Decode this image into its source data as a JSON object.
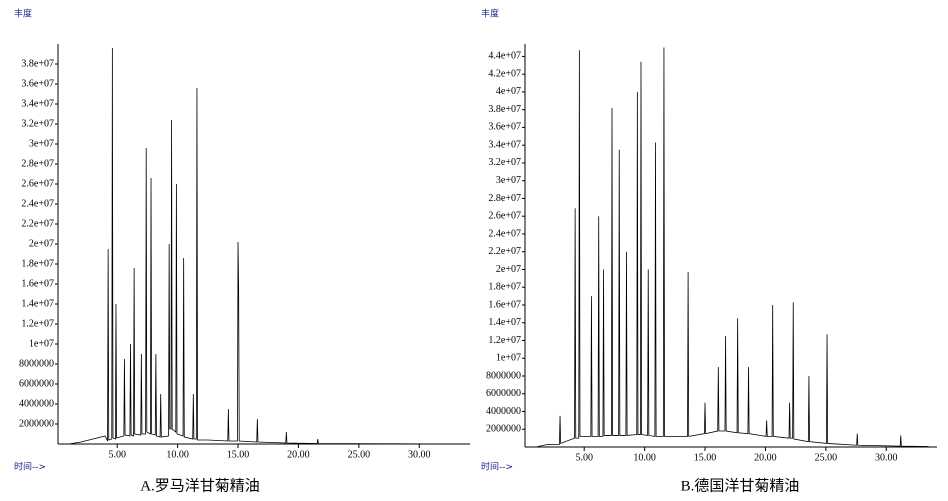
{
  "chart_data": [
    {
      "type": "line",
      "title": "A.罗马洋甘菊精油",
      "y_label": "丰度",
      "x_label": "时间-->",
      "color": "#000000",
      "x": [
        1.0,
        2.0,
        3.0,
        4.0,
        4.2,
        4.25,
        4.3,
        4.55,
        4.6,
        4.65,
        4.85,
        4.9,
        4.95,
        5.55,
        5.6,
        5.65,
        6.05,
        6.1,
        6.15,
        6.35,
        6.4,
        6.45,
        6.95,
        7.0,
        7.05,
        7.35,
        7.4,
        7.45,
        7.75,
        7.8,
        7.85,
        8.15,
        8.2,
        8.25,
        8.55,
        8.6,
        8.65,
        9.25,
        9.3,
        9.35,
        9.45,
        9.5,
        9.55,
        9.85,
        9.9,
        9.95,
        10.45,
        10.5,
        10.55,
        11.25,
        11.3,
        11.35,
        11.55,
        11.6,
        11.65,
        12.5,
        14.15,
        14.2,
        14.25,
        14.95,
        15.0,
        15.05,
        15.1,
        16.55,
        16.6,
        16.65,
        18.95,
        19.0,
        19.05,
        21.55,
        21.6,
        21.65,
        28.0,
        33.0
      ],
      "values": [
        0,
        200000,
        500000,
        800000,
        300000,
        19500000,
        400000,
        500000,
        39600000,
        600000,
        500000,
        14000000,
        600000,
        800000,
        8500000,
        900000,
        800000,
        10000000,
        900000,
        800000,
        17600000,
        1000000,
        900000,
        9000000,
        1000000,
        1000000,
        29600000,
        1200000,
        1000000,
        26600000,
        1000000,
        900000,
        9000000,
        800000,
        700000,
        5000000,
        700000,
        800000,
        20000000,
        1500000,
        1500000,
        32400000,
        1500000,
        1200000,
        26000000,
        1000000,
        800000,
        18600000,
        700000,
        500000,
        5000000,
        500000,
        500000,
        35600000,
        400000,
        400000,
        300000,
        3500000,
        300000,
        300000,
        20200000,
        15500000,
        300000,
        200000,
        2500000,
        200000,
        100000,
        1200000,
        100000,
        50000,
        500000,
        50000,
        20000,
        0
      ],
      "xlim": [
        0.1,
        34.2
      ],
      "ylim": [
        0,
        40000000
      ],
      "xticks": [
        {
          "value": 5,
          "label": "5.00"
        },
        {
          "value": 10,
          "label": "10.00"
        },
        {
          "value": 15,
          "label": "15.00"
        },
        {
          "value": 20,
          "label": "20.00"
        },
        {
          "value": 25,
          "label": "25.00"
        },
        {
          "value": 30,
          "label": "30.00"
        }
      ],
      "yticks": [
        2000000,
        4000000,
        6000000,
        8000000,
        {
          "value": 10000000,
          "label": "1e+07"
        },
        {
          "value": 12000000,
          "label": "1.2e+07"
        },
        {
          "value": 14000000,
          "label": "1.4e+07"
        },
        {
          "value": 16000000,
          "label": "1.6e+07"
        },
        {
          "value": 18000000,
          "label": "1.8e+07"
        },
        {
          "value": 20000000,
          "label": "2e+07"
        },
        {
          "value": 22000000,
          "label": "2.2e+07"
        },
        {
          "value": 24000000,
          "label": "2.4e+07"
        },
        {
          "value": 26000000,
          "label": "2.6e+07"
        },
        {
          "value": 28000000,
          "label": "2.8e+07"
        },
        {
          "value": 30000000,
          "label": "3e+07"
        },
        {
          "value": 32000000,
          "label": "3.2e+07"
        },
        {
          "value": 34000000,
          "label": "3.4e+07"
        },
        {
          "value": 36000000,
          "label": "3.6e+07"
        },
        {
          "value": 38000000,
          "label": "3.8e+07"
        }
      ]
    },
    {
      "type": "line",
      "title": "B.德国洋甘菊精油",
      "y_label": "丰度",
      "x_label": "时间-->",
      "color": "#000000",
      "x": [
        1.0,
        2.0,
        2.95,
        3.0,
        3.05,
        4.2,
        4.25,
        4.3,
        4.55,
        4.6,
        4.65,
        5.55,
        5.6,
        5.65,
        6.15,
        6.2,
        6.25,
        6.55,
        6.6,
        6.65,
        7.25,
        7.3,
        7.35,
        7.85,
        7.9,
        7.95,
        8.45,
        8.5,
        8.55,
        9.35,
        9.4,
        9.45,
        9.65,
        9.7,
        9.75,
        10.25,
        10.3,
        10.35,
        10.85,
        10.9,
        10.95,
        11.55,
        11.6,
        11.65,
        12.5,
        13.55,
        13.6,
        13.65,
        14.95,
        15.0,
        15.05,
        16.05,
        16.1,
        16.15,
        16.65,
        16.7,
        16.75,
        17.65,
        17.7,
        17.75,
        18.55,
        18.6,
        18.65,
        20.05,
        20.1,
        20.15,
        20.55,
        20.6,
        20.65,
        21.95,
        22.0,
        22.05,
        22.25,
        22.3,
        22.35,
        23.55,
        23.6,
        23.65,
        25.05,
        25.1,
        25.15,
        27.55,
        27.6,
        27.65,
        31.15,
        31.2,
        31.25,
        33.5
      ],
      "values": [
        0,
        300000,
        300000,
        3500000,
        400000,
        1000000,
        26900000,
        1000000,
        1000000,
        44700000,
        1200000,
        1200000,
        17000000,
        1200000,
        1200000,
        26000000,
        1200000,
        1200000,
        20000000,
        1300000,
        1300000,
        38200000,
        1300000,
        1300000,
        33500000,
        1300000,
        1300000,
        22000000,
        1300000,
        1400000,
        40000000,
        1400000,
        1400000,
        43400000,
        1400000,
        1300000,
        20000000,
        1300000,
        1200000,
        34300000,
        1200000,
        1200000,
        45000000,
        1200000,
        1200000,
        1200000,
        19700000,
        1200000,
        1500000,
        5000000,
        1500000,
        1800000,
        9000000,
        1800000,
        1800000,
        12500000,
        1800000,
        1600000,
        14500000,
        1600000,
        1500000,
        9000000,
        1500000,
        1200000,
        3000000,
        1200000,
        1200000,
        16000000,
        1200000,
        1000000,
        5000000,
        1000000,
        1000000,
        16300000,
        900000,
        600000,
        8000000,
        600000,
        400000,
        12700000,
        400000,
        200000,
        1500000,
        200000,
        100000,
        1300000,
        100000,
        50000
      ],
      "xlim": [
        0.1,
        34.2
      ],
      "ylim": [
        0,
        45400000
      ],
      "xticks": [
        {
          "value": 5,
          "label": "5.00"
        },
        {
          "value": 10,
          "label": "10.00"
        },
        {
          "value": 15,
          "label": "15.00"
        },
        {
          "value": 20,
          "label": "20.00"
        },
        {
          "value": 25,
          "label": "25.00"
        },
        {
          "value": 30,
          "label": "30.00"
        }
      ],
      "yticks": [
        2000000,
        4000000,
        6000000,
        8000000,
        {
          "value": 10000000,
          "label": "1e+07"
        },
        {
          "value": 12000000,
          "label": "1.2e+07"
        },
        {
          "value": 14000000,
          "label": "1.4e+07"
        },
        {
          "value": 16000000,
          "label": "1.6e+07"
        },
        {
          "value": 18000000,
          "label": "1.8e+07"
        },
        {
          "value": 20000000,
          "label": "2e+07"
        },
        {
          "value": 22000000,
          "label": "2.2e+07"
        },
        {
          "value": 24000000,
          "label": "2.4e+07"
        },
        {
          "value": 26000000,
          "label": "2.6e+07"
        },
        {
          "value": 28000000,
          "label": "2.8e+07"
        },
        {
          "value": 30000000,
          "label": "3e+07"
        },
        {
          "value": 32000000,
          "label": "3.2e+07"
        },
        {
          "value": 34000000,
          "label": "3.4e+07"
        },
        {
          "value": 36000000,
          "label": "3.6e+07"
        },
        {
          "value": 38000000,
          "label": "3.8e+07"
        },
        {
          "value": 40000000,
          "label": "4e+07"
        },
        {
          "value": 42000000,
          "label": "4.2e+07"
        },
        {
          "value": 44000000,
          "label": "4.4e+07"
        }
      ]
    }
  ]
}
